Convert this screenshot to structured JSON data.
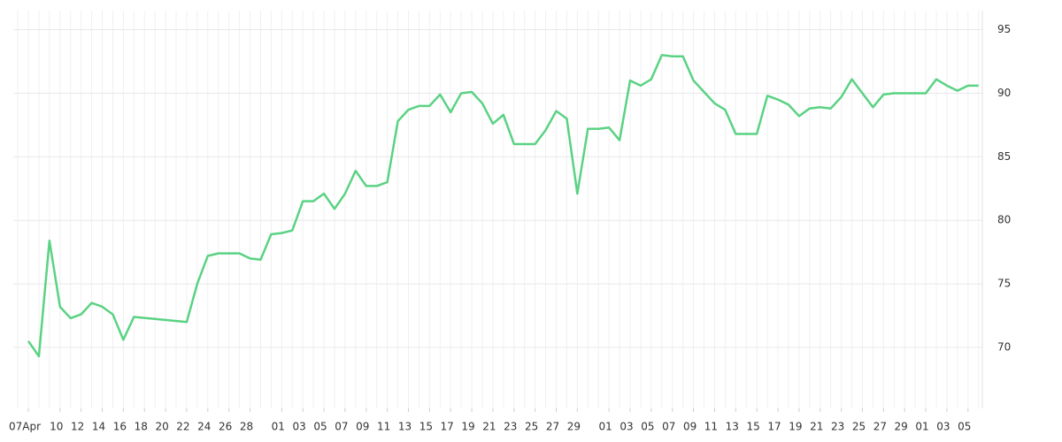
{
  "chart_data": {
    "type": "line",
    "x": [
      "04-07",
      "04-08",
      "04-09",
      "04-10",
      "04-11",
      "04-12",
      "04-13",
      "04-14",
      "04-15",
      "04-16",
      "04-17",
      "04-22",
      "04-23",
      "04-24",
      "04-25",
      "04-26",
      "04-27",
      "04-28",
      "04-29",
      "04-30",
      "05-01",
      "05-02",
      "05-03",
      "05-04",
      "05-05",
      "05-06",
      "05-07",
      "05-08",
      "05-09",
      "05-10",
      "05-11",
      "05-12",
      "05-13",
      "05-14",
      "05-15",
      "05-16",
      "05-17",
      "05-18",
      "05-19",
      "05-20",
      "05-21",
      "05-22",
      "05-23",
      "05-24",
      "05-25",
      "05-26",
      "05-27",
      "05-28",
      "05-29",
      "05-30",
      "05-31",
      "06-01",
      "06-02",
      "06-03",
      "06-04",
      "06-05",
      "06-06",
      "06-07",
      "06-08",
      "06-09",
      "06-10",
      "06-11",
      "06-12",
      "06-13",
      "06-14",
      "06-15",
      "06-16",
      "06-17",
      "06-18",
      "06-19",
      "06-20",
      "06-21",
      "06-22",
      "06-23",
      "06-24",
      "06-25",
      "06-26",
      "06-27",
      "06-28",
      "06-29",
      "06-30",
      "07-01",
      "07-02",
      "07-03",
      "07-04",
      "07-05",
      "07-06"
    ],
    "series": [
      {
        "color": "#5ad283",
        "values": [
          70.5,
          69.3,
          78.4,
          73.2,
          72.3,
          72.6,
          73.5,
          73.2,
          72.6,
          70.6,
          72.4,
          72.0,
          75.0,
          77.2,
          77.4,
          77.4,
          77.4,
          77.0,
          76.9,
          78.9,
          79.0,
          79.2,
          81.5,
          81.5,
          82.1,
          80.9,
          82.1,
          83.9,
          82.7,
          82.7,
          83.0,
          87.8,
          88.7,
          89.0,
          89.0,
          89.9,
          88.5,
          90.0,
          90.1,
          89.2,
          87.6,
          88.3,
          86.0,
          86.0,
          86.0,
          87.1,
          88.6,
          88.0,
          82.1,
          87.2,
          87.2,
          87.3,
          86.3,
          91.0,
          90.6,
          91.1,
          93.0,
          92.9,
          92.9,
          91.0,
          90.1,
          89.2,
          88.7,
          86.8,
          86.8,
          86.8,
          89.8,
          89.5,
          89.1,
          88.2,
          88.8,
          88.9,
          88.8,
          89.7,
          91.1,
          90.0,
          88.9,
          89.9,
          90.0,
          90.0,
          90.0,
          90.0,
          91.1,
          90.6,
          90.2,
          90.6,
          90.6
        ]
      }
    ],
    "xticks": [
      {
        "value": "04-07",
        "label": "07Apr"
      },
      {
        "value": "04-10",
        "label": "10"
      },
      {
        "value": "04-12",
        "label": "12"
      },
      {
        "value": "04-14",
        "label": "14"
      },
      {
        "value": "04-16",
        "label": "16"
      },
      {
        "value": "04-18",
        "label": "18"
      },
      {
        "value": "04-20",
        "label": "20"
      },
      {
        "value": "04-22",
        "label": "22"
      },
      {
        "value": "04-24",
        "label": "24"
      },
      {
        "value": "04-26",
        "label": "26"
      },
      {
        "value": "04-28",
        "label": "28"
      },
      {
        "value": "05-01",
        "label": "01"
      },
      {
        "value": "05-03",
        "label": "03"
      },
      {
        "value": "05-05",
        "label": "05"
      },
      {
        "value": "05-07",
        "label": "07"
      },
      {
        "value": "05-09",
        "label": "09"
      },
      {
        "value": "05-11",
        "label": "11"
      },
      {
        "value": "05-13",
        "label": "13"
      },
      {
        "value": "05-15",
        "label": "15"
      },
      {
        "value": "05-17",
        "label": "17"
      },
      {
        "value": "05-19",
        "label": "19"
      },
      {
        "value": "05-21",
        "label": "21"
      },
      {
        "value": "05-23",
        "label": "23"
      },
      {
        "value": "05-25",
        "label": "25"
      },
      {
        "value": "05-27",
        "label": "27"
      },
      {
        "value": "05-29",
        "label": "29"
      },
      {
        "value": "06-01",
        "label": "01"
      },
      {
        "value": "06-03",
        "label": "03"
      },
      {
        "value": "06-05",
        "label": "05"
      },
      {
        "value": "06-07",
        "label": "07"
      },
      {
        "value": "06-09",
        "label": "09"
      },
      {
        "value": "06-11",
        "label": "11"
      },
      {
        "value": "06-13",
        "label": "13"
      },
      {
        "value": "06-15",
        "label": "15"
      },
      {
        "value": "06-17",
        "label": "17"
      },
      {
        "value": "06-19",
        "label": "19"
      },
      {
        "value": "06-21",
        "label": "21"
      },
      {
        "value": "06-23",
        "label": "23"
      },
      {
        "value": "06-25",
        "label": "25"
      },
      {
        "value": "06-27",
        "label": "27"
      },
      {
        "value": "06-29",
        "label": "29"
      },
      {
        "value": "07-01",
        "label": "01"
      },
      {
        "value": "07-03",
        "label": "03"
      },
      {
        "value": "07-05",
        "label": "05"
      }
    ],
    "ylim": [
      65.2,
      96.5
    ],
    "yticks": [
      70,
      75,
      80,
      85,
      90,
      95
    ],
    "grid": true
  }
}
